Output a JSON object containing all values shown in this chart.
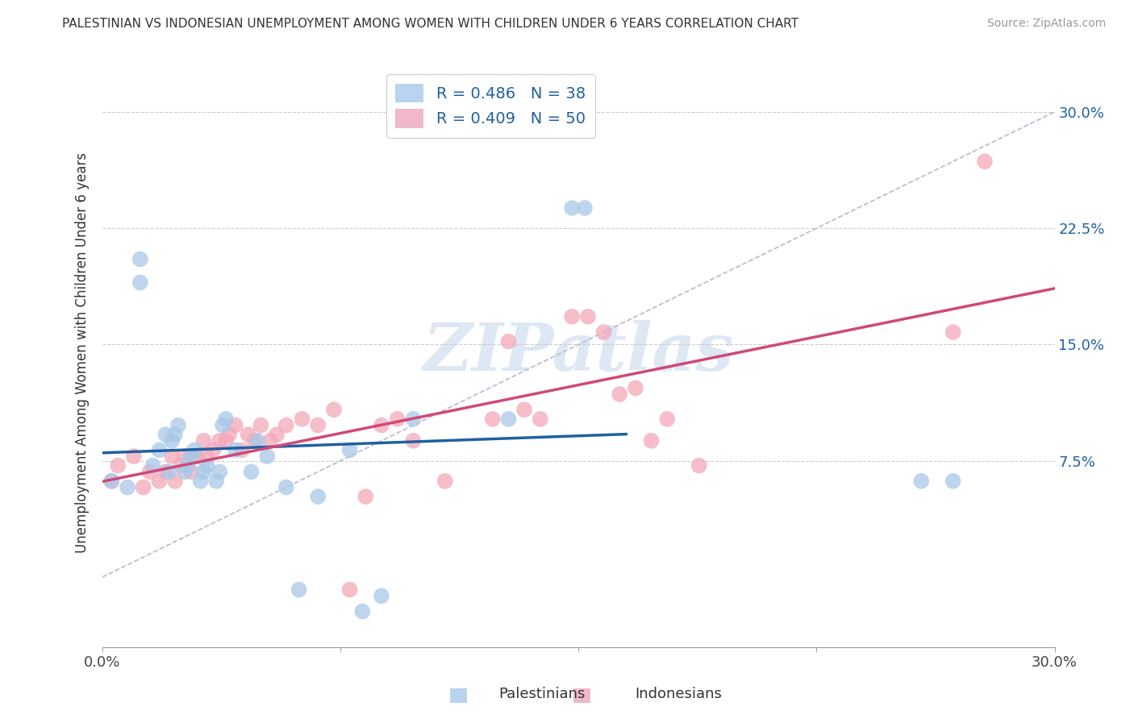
{
  "title": "PALESTINIAN VS INDONESIAN UNEMPLOYMENT AMONG WOMEN WITH CHILDREN UNDER 6 YEARS CORRELATION CHART",
  "source": "Source: ZipAtlas.com",
  "ylabel": "Unemployment Among Women with Children Under 6 years",
  "xlim": [
    0.0,
    0.3
  ],
  "ylim": [
    -0.045,
    0.335
  ],
  "blue_color": "#a8c8e8",
  "pink_color": "#f4a8b8",
  "blue_line_color": "#2060a0",
  "pink_line_color": "#d04878",
  "diagonal_color": "#b8b8d0",
  "watermark_color": "#c8d8ee",
  "legend_r_blue": "R = 0.486",
  "legend_n_blue": "N = 38",
  "legend_r_pink": "R = 0.409",
  "legend_n_pink": "N = 50",
  "palestinians_x": [
    0.003,
    0.008,
    0.012,
    0.012,
    0.016,
    0.018,
    0.02,
    0.021,
    0.022,
    0.023,
    0.024,
    0.026,
    0.027,
    0.028,
    0.029,
    0.031,
    0.032,
    0.033,
    0.036,
    0.037,
    0.038,
    0.039,
    0.042,
    0.047,
    0.049,
    0.052,
    0.058,
    0.062,
    0.068,
    0.078,
    0.082,
    0.088,
    0.098,
    0.128,
    0.148,
    0.152,
    0.258,
    0.268
  ],
  "palestinians_y": [
    0.062,
    0.058,
    0.19,
    0.205,
    0.072,
    0.082,
    0.092,
    0.068,
    0.088,
    0.092,
    0.098,
    0.068,
    0.072,
    0.078,
    0.082,
    0.062,
    0.068,
    0.072,
    0.062,
    0.068,
    0.098,
    0.102,
    0.082,
    0.068,
    0.088,
    0.078,
    0.058,
    -0.008,
    0.052,
    0.082,
    -0.022,
    -0.012,
    0.102,
    0.102,
    0.238,
    0.238,
    0.062,
    0.062
  ],
  "indonesians_x": [
    0.003,
    0.005,
    0.01,
    0.013,
    0.015,
    0.018,
    0.02,
    0.022,
    0.023,
    0.025,
    0.026,
    0.028,
    0.03,
    0.032,
    0.033,
    0.035,
    0.037,
    0.039,
    0.04,
    0.042,
    0.044,
    0.046,
    0.048,
    0.05,
    0.053,
    0.055,
    0.058,
    0.063,
    0.068,
    0.073,
    0.078,
    0.083,
    0.088,
    0.093,
    0.098,
    0.108,
    0.123,
    0.128,
    0.133,
    0.138,
    0.148,
    0.153,
    0.158,
    0.163,
    0.168,
    0.173,
    0.178,
    0.188,
    0.268,
    0.278
  ],
  "indonesians_y": [
    0.062,
    0.072,
    0.078,
    0.058,
    0.068,
    0.062,
    0.068,
    0.078,
    0.062,
    0.072,
    0.078,
    0.068,
    0.078,
    0.088,
    0.078,
    0.082,
    0.088,
    0.088,
    0.092,
    0.098,
    0.082,
    0.092,
    0.088,
    0.098,
    0.088,
    0.092,
    0.098,
    0.102,
    0.098,
    0.108,
    -0.008,
    0.052,
    0.098,
    0.102,
    0.088,
    0.062,
    0.102,
    0.152,
    0.108,
    0.102,
    0.168,
    0.168,
    0.158,
    0.118,
    0.122,
    0.088,
    0.102,
    0.072,
    0.158,
    0.268
  ]
}
